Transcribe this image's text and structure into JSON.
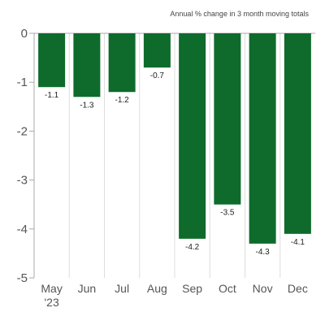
{
  "chart_data": {
    "type": "bar",
    "title": "",
    "subtitle": "Annual % change in 3 month moving totals",
    "xlabel": "",
    "ylabel": "",
    "categories": [
      "May",
      "Jun",
      "Jul",
      "Aug",
      "Sep",
      "Oct",
      "Nov",
      "Dec"
    ],
    "year_label": "'23",
    "values": [
      -1.1,
      -1.3,
      -1.2,
      -0.7,
      -4.2,
      -3.5,
      -4.3,
      -4.1
    ],
    "value_labels": [
      "-1.1",
      "-1.3",
      "-1.2",
      "-0.7",
      "-4.2",
      "-3.5",
      "-4.3",
      "-4.1"
    ],
    "ylim": [
      -5,
      0
    ],
    "yticks": [
      0,
      -1,
      -2,
      -3,
      -4,
      -5
    ],
    "ytick_labels": [
      "0",
      "-1",
      "-2",
      "-3",
      "-4",
      "-5"
    ],
    "grid": "vertical",
    "legend": "none",
    "colors": {
      "bar": "#0e6b2b",
      "axis": "#aaaaaa",
      "grid": "#dddddd"
    }
  }
}
